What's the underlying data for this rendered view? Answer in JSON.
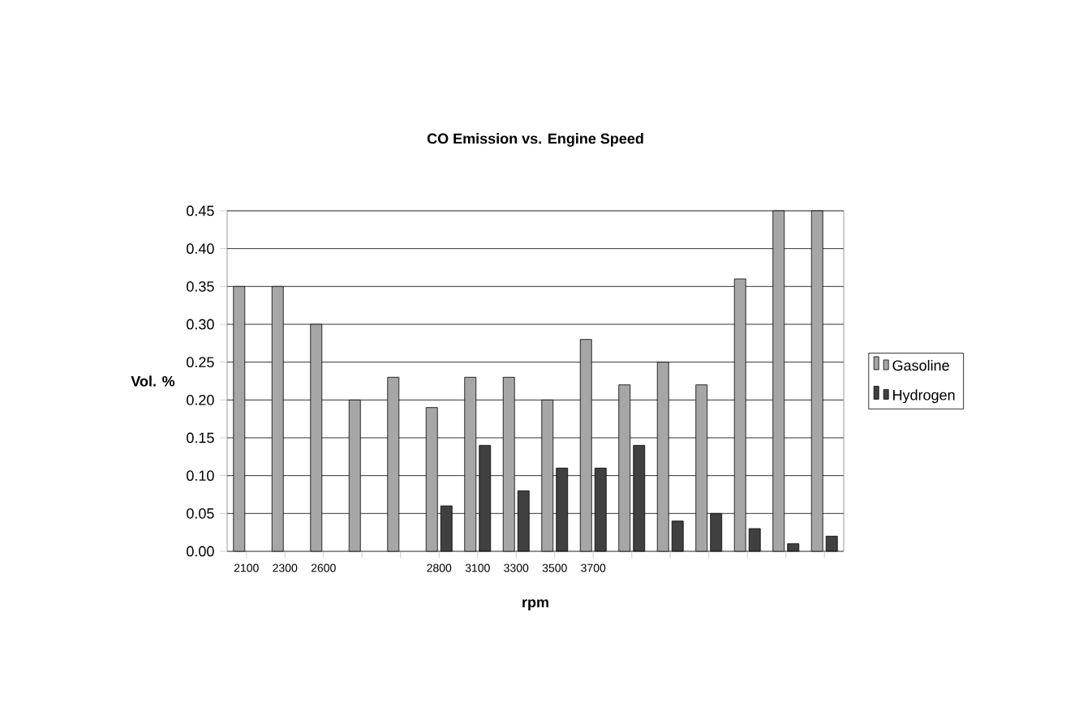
{
  "chart_data": {
    "type": "bar",
    "title": "CO Emission vs. Engine Speed",
    "xlabel": "rpm",
    "ylabel": "Vol. %",
    "categories": [
      "2100",
      "2300",
      "2600",
      null,
      null,
      "2800",
      "3100",
      "3300",
      "3500",
      "3700",
      null,
      null,
      null,
      null,
      null,
      null
    ],
    "series": [
      {
        "name": "Gasoline",
        "color": "#a6a6a6",
        "values": [
          0.35,
          0.35,
          0.3,
          0.2,
          0.23,
          0.19,
          0.23,
          0.23,
          0.2,
          0.28,
          0.22,
          0.25,
          0.22,
          0.36,
          0.45,
          0.45
        ]
      },
      {
        "name": "Hydrogen",
        "color": "#404040",
        "values": [
          null,
          null,
          null,
          null,
          null,
          0.06,
          0.14,
          0.08,
          0.11,
          0.11,
          0.14,
          0.04,
          0.05,
          0.03,
          0.01,
          0.02
        ]
      }
    ],
    "ylim": [
      0,
      0.45
    ],
    "yticks": [
      {
        "value": 0,
        "label": "0.00"
      },
      {
        "value": 0.05,
        "label": "0.05"
      },
      {
        "value": 0.1,
        "label": "0.10"
      },
      {
        "value": 0.15,
        "label": "0.15"
      },
      {
        "value": 0.2,
        "label": "0.20"
      },
      {
        "value": 0.25,
        "label": "0.25"
      },
      {
        "value": 0.3,
        "label": "0.30"
      },
      {
        "value": 0.35,
        "label": "0.35"
      },
      {
        "value": 0.4,
        "label": "0.40"
      },
      {
        "value": 0.45,
        "label": "0.45"
      }
    ],
    "grid": "y",
    "legend": "right"
  }
}
